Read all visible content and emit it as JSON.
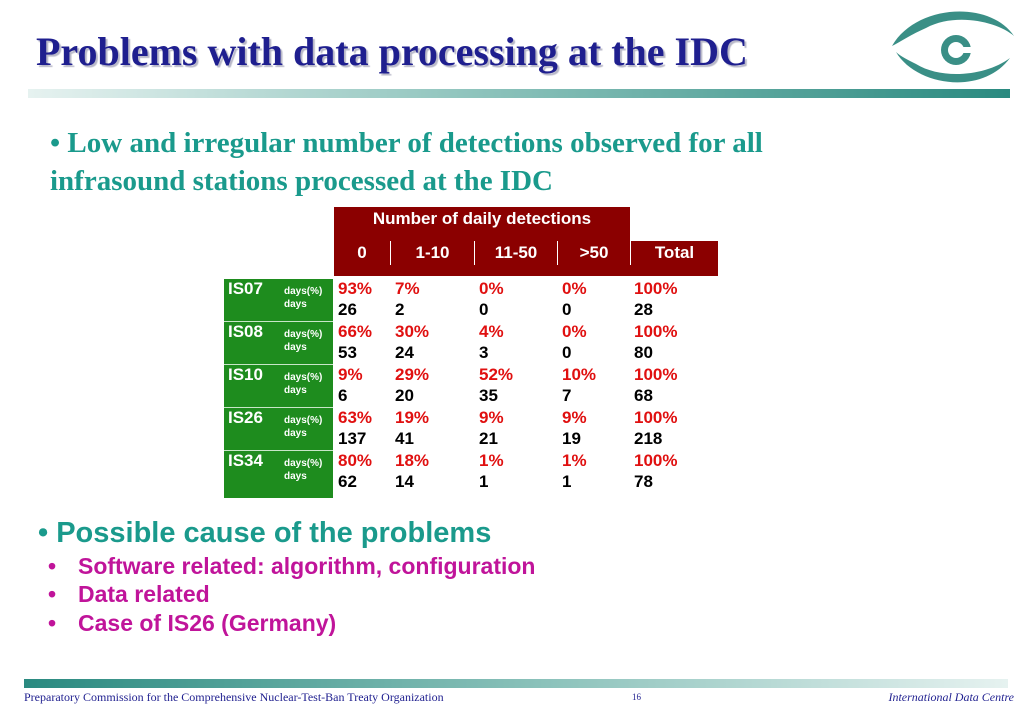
{
  "title": "Problems with data processing at the IDC",
  "logo": {
    "icon": "ctbto-eye-logo-icon",
    "color": "#3a8f86"
  },
  "bullet1": "• Low and irregular number of detections observed for all infrasound stations processed at the IDC",
  "table": {
    "header_main": "Number of daily detections",
    "columns": [
      "0",
      "1-10",
      "11-50",
      ">50",
      "Total"
    ],
    "label_pct": "days(%)",
    "label_days": "days",
    "rows": [
      {
        "station": "IS07",
        "pct": [
          "93%",
          "7%",
          "0%",
          "0%",
          "100%"
        ],
        "days": [
          "26",
          "2",
          "0",
          "0",
          "28"
        ]
      },
      {
        "station": "IS08",
        "pct": [
          "66%",
          "30%",
          "4%",
          "0%",
          "100%"
        ],
        "days": [
          "53",
          "24",
          "3",
          "0",
          "80"
        ]
      },
      {
        "station": "IS10",
        "pct": [
          "9%",
          "29%",
          "52%",
          "10%",
          "100%"
        ],
        "days": [
          "6",
          "20",
          "35",
          "7",
          "68"
        ]
      },
      {
        "station": "IS26",
        "pct": [
          "63%",
          "19%",
          "9%",
          "9%",
          "100%"
        ],
        "days": [
          "137",
          "41",
          "21",
          "19",
          "218"
        ]
      },
      {
        "station": "IS34",
        "pct": [
          "80%",
          "18%",
          "1%",
          "1%",
          "100%"
        ],
        "days": [
          "62",
          "14",
          "1",
          "1",
          "78"
        ]
      }
    ]
  },
  "bullet2": "• Possible cause of the problems",
  "sub_bullets": [
    "Software related: algorithm, configuration",
    "Data related",
    "Case of IS26 (Germany)"
  ],
  "footer": {
    "left": "Preparatory Commission for the Comprehensive Nuclear-Test-Ban Treaty Organization",
    "page": "16",
    "right": "International Data Centre"
  }
}
